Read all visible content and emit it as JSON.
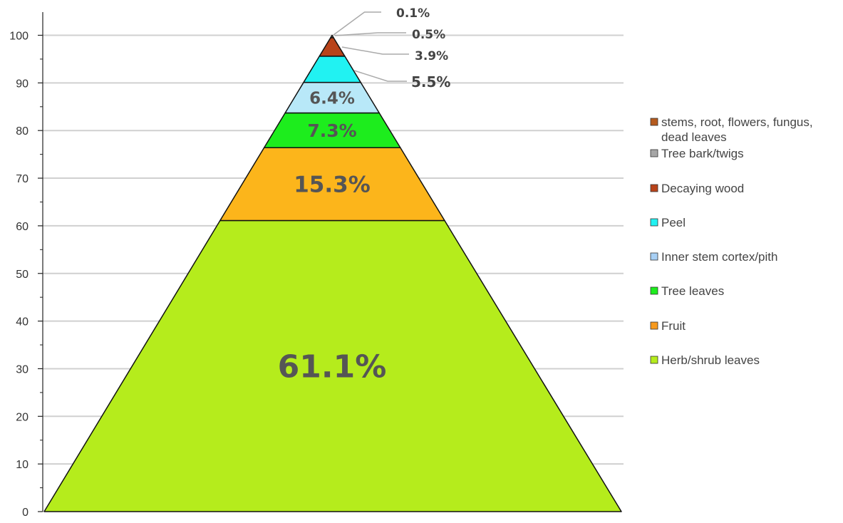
{
  "chart_data": {
    "type": "pyramid",
    "ylim": [
      0,
      100
    ],
    "yticks": [
      0,
      10,
      20,
      30,
      40,
      50,
      60,
      70,
      80,
      90,
      100
    ],
    "grid": true,
    "legend_position": "right",
    "segments": [
      {
        "name": "Herb/shrub leaves",
        "value": 61.1,
        "label": "61.1%",
        "color": "#b5ec1c"
      },
      {
        "name": "Fruit",
        "value": 15.3,
        "label": "15.3%",
        "color": "#fcb51b"
      },
      {
        "name": "Tree leaves",
        "value": 7.3,
        "label": "7.3%",
        "color": "#1ded1d"
      },
      {
        "name": "Inner stem cortex/pith",
        "value": 6.4,
        "label": "6.4%",
        "color": "#b8e8f8"
      },
      {
        "name": "Peel",
        "value": 5.5,
        "label": "5.5%",
        "color": "#21f2f2"
      },
      {
        "name": "Decaying wood",
        "value": 3.9,
        "label": "3.9%",
        "color": "#b8431a"
      },
      {
        "name": "Tree bark/twigs",
        "value": 0.5,
        "label": "0.5%",
        "color": "#a6a6a6"
      },
      {
        "name": "stems, root, flowers, fungus, dead leaves",
        "value": 0.1,
        "label": "0.1%",
        "color": "#b55a1e"
      }
    ],
    "legend": [
      {
        "lines": [
          "stems, root, flowers, fungus,",
          "dead leaves"
        ],
        "color": "#b55a1e"
      },
      {
        "lines": [
          "Tree bark/twigs"
        ],
        "color": "#a6a6a6"
      },
      {
        "lines": [
          "Decaying wood"
        ],
        "color": "#b8431a"
      },
      {
        "lines": [
          "Peel"
        ],
        "color": "#21f2f2"
      },
      {
        "lines": [
          "Inner stem cortex/pith"
        ],
        "color": "#a8d0f5"
      },
      {
        "lines": [
          "Tree leaves"
        ],
        "color": "#1ded1d"
      },
      {
        "lines": [
          "Fruit"
        ],
        "color": "#f79a1e"
      },
      {
        "lines": [
          "Herb/shrub leaves"
        ],
        "color": "#b5ec1c"
      }
    ]
  }
}
